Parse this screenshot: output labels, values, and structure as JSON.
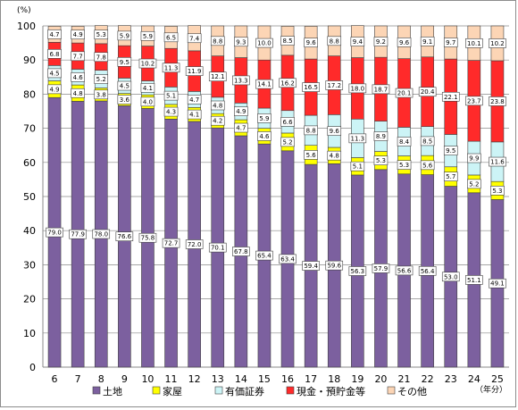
{
  "chart_data": {
    "type": "bar",
    "stacked": true,
    "y_unit": "(%)",
    "x_unit": "（年分）",
    "categories": [
      "6",
      "7",
      "8",
      "9",
      "10",
      "11",
      "12",
      "13",
      "14",
      "15",
      "16",
      "17",
      "18",
      "19",
      "20",
      "21",
      "22",
      "23",
      "24",
      "25"
    ],
    "ylim": [
      0,
      100
    ],
    "yticks": [
      0,
      10,
      20,
      30,
      40,
      50,
      60,
      70,
      80,
      90,
      100
    ],
    "grid": true,
    "legend_position": "bottom",
    "series": [
      {
        "name": "土地",
        "color": "#7c609f",
        "values": [
          79.0,
          77.9,
          78.0,
          76.6,
          75.8,
          72.7,
          72.0,
          70.1,
          67.8,
          65.4,
          63.4,
          59.4,
          59.6,
          56.3,
          57.9,
          56.6,
          56.4,
          53.0,
          51.1,
          49.1
        ]
      },
      {
        "name": "家屋",
        "color": "#ffff00",
        "values": [
          4.9,
          4.8,
          3.8,
          3.6,
          4.0,
          4.3,
          4.1,
          4.2,
          4.7,
          4.6,
          5.2,
          5.6,
          4.8,
          5.1,
          5.3,
          5.3,
          5.6,
          5.7,
          5.2,
          5.3
        ]
      },
      {
        "name": "有価証券",
        "color": "#ccf4f6",
        "values": [
          4.5,
          4.6,
          5.2,
          4.5,
          4.1,
          5.1,
          4.7,
          4.8,
          4.9,
          5.9,
          6.6,
          8.8,
          9.6,
          11.3,
          8.9,
          8.4,
          8.5,
          9.5,
          9.9,
          11.6
        ]
      },
      {
        "name": "現金・預貯金等",
        "color": "#ff2a2a",
        "values": [
          6.8,
          7.7,
          7.8,
          9.5,
          10.2,
          11.3,
          11.9,
          12.1,
          13.3,
          14.1,
          16.2,
          16.5,
          17.2,
          18.0,
          18.7,
          20.1,
          20.4,
          22.1,
          23.7,
          23.8
        ]
      },
      {
        "name": "その他",
        "color": "#fcd5b5",
        "values": [
          4.7,
          4.9,
          5.3,
          5.9,
          5.9,
          6.5,
          7.4,
          8.8,
          9.3,
          10.0,
          8.5,
          9.6,
          8.8,
          9.4,
          9.2,
          9.6,
          9.1,
          9.7,
          10.1,
          10.2
        ]
      }
    ],
    "labeled_series": [
      "土地",
      "家屋",
      "有価証券",
      "現金・預貯金等",
      "その他"
    ]
  }
}
